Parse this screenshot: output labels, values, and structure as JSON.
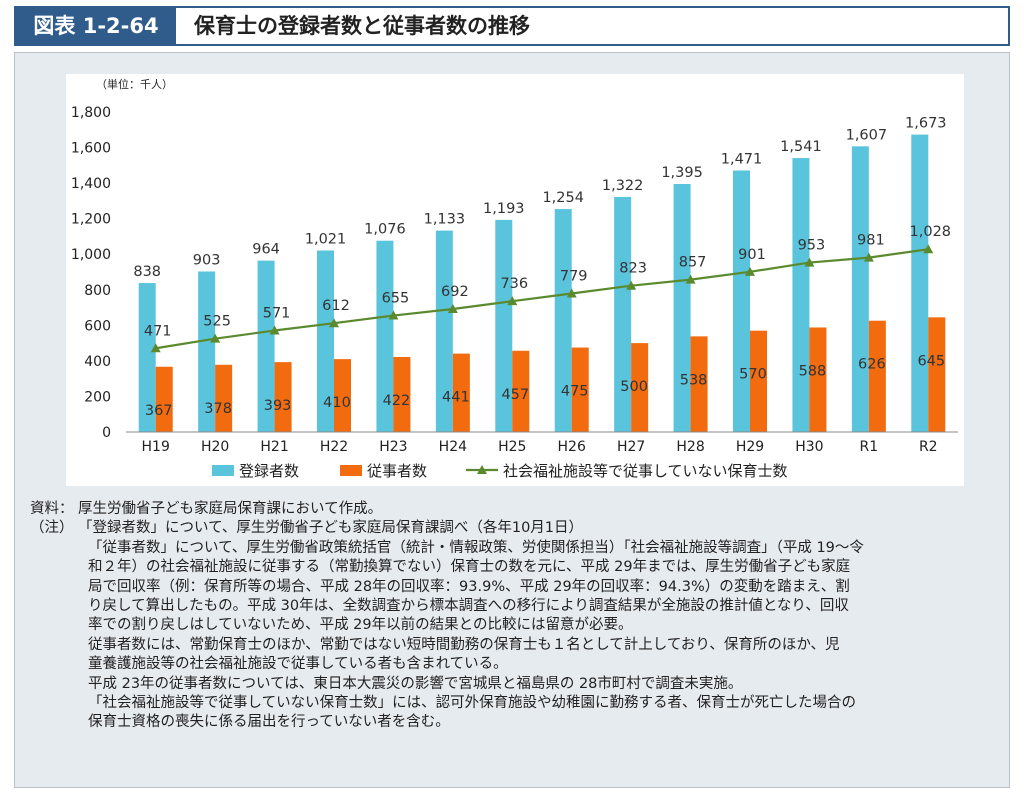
{
  "header": {
    "figure_label": "図表 1-2-64",
    "title": "保育士の登録者数と従事者数の推移"
  },
  "chart_data": {
    "type": "bar",
    "unit_label": "（単位：千人）",
    "categories": [
      "H19",
      "H20",
      "H21",
      "H22",
      "H23",
      "H24",
      "H25",
      "H26",
      "H27",
      "H28",
      "H29",
      "H30",
      "R1",
      "R2"
    ],
    "ylim": [
      0,
      1800
    ],
    "yticks": [
      "0",
      "200",
      "400",
      "600",
      "800",
      "1,000",
      "1,200",
      "1,400",
      "1,600",
      "1,800"
    ],
    "series": [
      {
        "name": "登録者数",
        "kind": "bar",
        "color": "#5bc4dd",
        "values": [
          838,
          903,
          964,
          1021,
          1076,
          1133,
          1193,
          1254,
          1322,
          1395,
          1471,
          1541,
          1607,
          1673
        ],
        "labels": [
          "838",
          "903",
          "964",
          "1,021",
          "1,076",
          "1,133",
          "1,193",
          "1,254",
          "1,322",
          "1,395",
          "1,471",
          "1,541",
          "1,607",
          "1,673"
        ]
      },
      {
        "name": "従事者数",
        "kind": "bar",
        "color": "#f26b0f",
        "values": [
          367,
          378,
          393,
          410,
          422,
          441,
          457,
          475,
          500,
          538,
          570,
          588,
          626,
          645
        ],
        "labels": [
          "367",
          "378",
          "393",
          "410",
          "422",
          "441",
          "457",
          "475",
          "500",
          "538",
          "570",
          "588",
          "626",
          "645"
        ]
      },
      {
        "name": "社会福祉施設等で従事していない保育士数",
        "kind": "line",
        "color": "#5b8a2e",
        "values": [
          471,
          525,
          571,
          612,
          655,
          692,
          736,
          779,
          823,
          857,
          901,
          953,
          981,
          1028
        ],
        "labels": [
          "471",
          "525",
          "571",
          "612",
          "655",
          "692",
          "736",
          "779",
          "823",
          "857",
          "901",
          "953",
          "981",
          "1,028"
        ]
      }
    ],
    "legend": "bottom",
    "grid": false
  },
  "notes": {
    "source_label": "資料：",
    "source_text": "厚生労働省子ども家庭局保育課において作成。",
    "note_label": "（注）",
    "lines": [
      "「登録者数」について、厚生労働省子ども家庭局保育課調べ（各年10月1日）",
      "「従事者数」について、厚生労働省政策統括官（統計・情報政策、労使関係担当）「社会福祉施設等調査」（平成 19～令",
      "和２年）の社会福祉施設に従事する（常勤換算でない）保育士の数を元に、平成 29年までは、厚生労働省子ども家庭",
      "局で回収率（例：保育所等の場合、平成 28年の回収率：93.9%、平成 29年の回収率：94.3%）の変動を踏まえ、割",
      "り戻して算出したもの。平成 30年は、全数調査から標本調査への移行により調査結果が全施設の推計値となり、回収",
      "率での割り戻しはしていないため、平成 29年以前の結果との比較には留意が必要。",
      "従事者数には、常勤保育士のほか、常勤ではない短時間勤務の保育士も１名として計上しており、保育所のほか、児",
      "童養護施設等の社会福祉施設で従事している者も含まれている。",
      "平成 23年の従事者数については、東日本大震災の影響で宮城県と福島県の 28市町村で調査未実施。",
      "「社会福祉施設等で従事していない保育士数」には、認可外保育施設や幼稚園に勤務する者、保育士が死亡した場合の",
      "保育士資格の喪失に係る届出を行っていない者を含む。"
    ]
  }
}
